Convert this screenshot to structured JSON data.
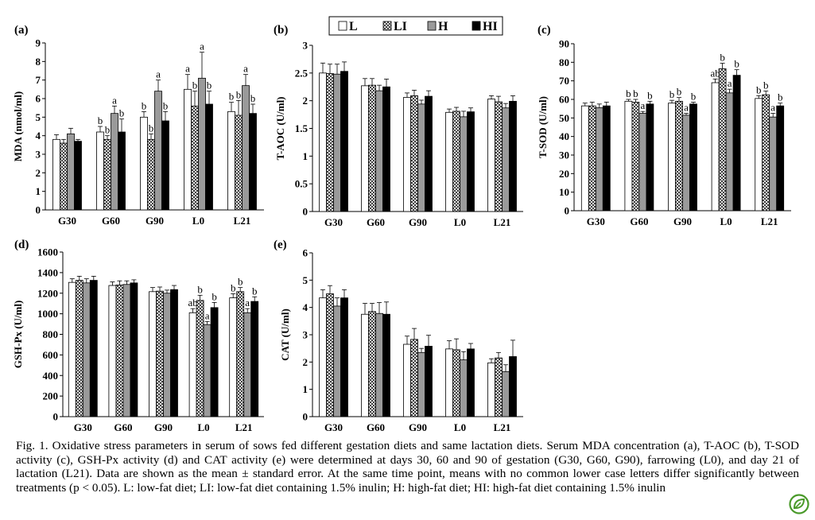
{
  "legend": [
    {
      "code": "L",
      "pattern": "white"
    },
    {
      "code": "LI",
      "pattern": "crosshatch"
    },
    {
      "code": "H",
      "pattern": "gray"
    },
    {
      "code": "HI",
      "pattern": "black"
    }
  ],
  "caption": "Fig. 1. Oxidative stress parameters in serum of sows fed different gestation diets and same lactation diets. Serum MDA concentration (a), T-AOC (b), T-SOD activity (c), GSH-Px activity (d) and CAT activity (e) were determined at days 30, 60 and 90 of gestation (G30, G60, G90), farrowing (L0), and day 21 of lactation (L21). Data are shown as the mean ± standard error. At the same time point, means with no common lower case letters differ significantly between treatments (p < 0.05). L: low-fat diet; LI: low-fat diet containing 1.5% inulin; H: high-fat diet; HI: high-fat diet containing 1.5% inulin",
  "colors": {
    "bar_white": "#ffffff",
    "bar_gray": "#9a9a9a",
    "bar_black": "#000000",
    "badge": "#4a9a2a"
  },
  "badge_icon": "green-leaf-logo",
  "chart_data": [
    {
      "panel": "(a)",
      "type": "bar",
      "ylabel": "MDA (nmol/ml)",
      "categories": [
        "G30",
        "G60",
        "G90",
        "L0",
        "L21"
      ],
      "ylim": [
        0,
        9
      ],
      "yticks": [
        0,
        1,
        2,
        3,
        4,
        5,
        6,
        7,
        8,
        9
      ],
      "series": [
        {
          "name": "L",
          "values": [
            3.8,
            4.2,
            5.0,
            6.5,
            5.3
          ],
          "errors": [
            0.25,
            0.3,
            0.3,
            0.8,
            0.5
          ],
          "letters": [
            "",
            "b",
            "b",
            "a",
            "b"
          ]
        },
        {
          "name": "LI",
          "values": [
            3.6,
            3.8,
            3.8,
            5.6,
            5.1
          ],
          "errors": [
            0.2,
            0.2,
            0.3,
            0.8,
            0.8
          ],
          "letters": [
            "",
            "b",
            "b",
            "b",
            "b"
          ]
        },
        {
          "name": "H",
          "values": [
            4.1,
            5.2,
            6.4,
            7.1,
            6.7
          ],
          "errors": [
            0.3,
            0.4,
            0.6,
            1.4,
            0.6
          ],
          "letters": [
            "",
            "a",
            "a",
            "a",
            "a"
          ]
        },
        {
          "name": "HI",
          "values": [
            3.7,
            4.2,
            4.8,
            5.7,
            5.2
          ],
          "errors": [
            0.1,
            0.7,
            0.5,
            0.7,
            0.5
          ],
          "letters": [
            "",
            "b",
            "b",
            "b",
            "b"
          ]
        }
      ]
    },
    {
      "panel": "(b)",
      "type": "bar",
      "ylabel": "T-AOC (U/ml)",
      "categories": [
        "G30",
        "G60",
        "G90",
        "L0",
        "L21"
      ],
      "ylim": [
        0,
        3
      ],
      "yticks": [
        0,
        0.5,
        1,
        1.5,
        2,
        2.5,
        3
      ],
      "series": [
        {
          "name": "L",
          "values": [
            2.5,
            2.27,
            2.06,
            1.79,
            2.03
          ],
          "errors": [
            0.18,
            0.13,
            0.08,
            0.06,
            0.06
          ],
          "letters": [
            "",
            "",
            "",
            "",
            ""
          ]
        },
        {
          "name": "LI",
          "values": [
            2.49,
            2.28,
            2.09,
            1.81,
            1.98
          ],
          "errors": [
            0.17,
            0.12,
            0.1,
            0.07,
            0.1
          ],
          "letters": [
            "",
            "",
            "",
            "",
            ""
          ]
        },
        {
          "name": "H",
          "values": [
            2.48,
            2.18,
            1.94,
            1.71,
            1.87
          ],
          "errors": [
            0.18,
            0.1,
            0.07,
            0.1,
            0.08
          ],
          "letters": [
            "",
            "",
            "",
            "",
            ""
          ]
        },
        {
          "name": "HI",
          "values": [
            2.53,
            2.25,
            2.08,
            1.8,
            1.99
          ],
          "errors": [
            0.17,
            0.14,
            0.1,
            0.07,
            0.1
          ],
          "letters": [
            "",
            "",
            "",
            "",
            ""
          ]
        }
      ]
    },
    {
      "panel": "(c)",
      "type": "bar",
      "ylabel": "T-SOD (U/ml)",
      "categories": [
        "G30",
        "G60",
        "G90",
        "L0",
        "L21"
      ],
      "ylim": [
        0,
        90
      ],
      "yticks": [
        0,
        10,
        20,
        30,
        40,
        50,
        60,
        70,
        80,
        90
      ],
      "series": [
        {
          "name": "L",
          "values": [
            56.5,
            59,
            58,
            69,
            60.5
          ],
          "errors": [
            1.5,
            1,
            1.5,
            2,
            1.5
          ],
          "letters": [
            "",
            "b",
            "b",
            "ab",
            "b"
          ]
        },
        {
          "name": "LI",
          "values": [
            56.5,
            58.5,
            59,
            76.5,
            62.5
          ],
          "errors": [
            2,
            1.5,
            2,
            3,
            2
          ],
          "letters": [
            "",
            "b",
            "b",
            "b",
            "b"
          ]
        },
        {
          "name": "H",
          "values": [
            55.5,
            52.5,
            51.5,
            63.5,
            50.5
          ],
          "errors": [
            2,
            1,
            1,
            2,
            2
          ],
          "letters": [
            "",
            "a",
            "a",
            "a",
            "a"
          ]
        },
        {
          "name": "HI",
          "values": [
            56.5,
            57.5,
            57.5,
            73,
            56.5
          ],
          "errors": [
            2,
            1.5,
            1,
            3,
            1.5
          ],
          "letters": [
            "",
            "b",
            "b",
            "b",
            "b"
          ]
        }
      ]
    },
    {
      "panel": "(d)",
      "type": "bar",
      "ylabel": "GSH-Px (U/ml)",
      "categories": [
        "G30",
        "G60",
        "G90",
        "L0",
        "L21"
      ],
      "ylim": [
        0,
        1600
      ],
      "yticks": [
        0,
        200,
        400,
        600,
        800,
        1000,
        1200,
        1400,
        1600
      ],
      "series": [
        {
          "name": "L",
          "values": [
            1305,
            1275,
            1215,
            1010,
            1155
          ],
          "errors": [
            35,
            35,
            40,
            40,
            40
          ],
          "letters": [
            "",
            "",
            "",
            "ab",
            "b"
          ]
        },
        {
          "name": "LI",
          "values": [
            1325,
            1280,
            1220,
            1130,
            1215
          ],
          "errors": [
            40,
            40,
            40,
            50,
            40
          ],
          "letters": [
            "",
            "",
            "",
            "b",
            "b"
          ]
        },
        {
          "name": "H",
          "values": [
            1300,
            1285,
            1200,
            895,
            1010
          ],
          "errors": [
            40,
            35,
            30,
            30,
            40
          ],
          "letters": [
            "",
            "",
            "",
            "a",
            "a"
          ]
        },
        {
          "name": "HI",
          "values": [
            1325,
            1300,
            1235,
            1060,
            1120
          ],
          "errors": [
            40,
            30,
            40,
            50,
            45
          ],
          "letters": [
            "",
            "",
            "",
            "b",
            "b"
          ]
        }
      ]
    },
    {
      "panel": "(e)",
      "type": "bar",
      "ylabel": "CAT (U/ml)",
      "categories": [
        "G30",
        "G60",
        "G90",
        "L0",
        "L21"
      ],
      "ylim": [
        0,
        6
      ],
      "yticks": [
        0,
        1,
        2,
        3,
        4,
        5,
        6
      ],
      "series": [
        {
          "name": "L",
          "values": [
            4.35,
            3.75,
            2.65,
            2.48,
            1.97
          ],
          "errors": [
            0.3,
            0.4,
            0.3,
            0.3,
            0.15
          ],
          "letters": [
            "",
            "",
            "",
            "",
            ""
          ]
        },
        {
          "name": "LI",
          "values": [
            4.5,
            3.85,
            2.83,
            2.45,
            2.15
          ],
          "errors": [
            0.3,
            0.3,
            0.4,
            0.4,
            0.2
          ],
          "letters": [
            "",
            "",
            "",
            "",
            ""
          ]
        },
        {
          "name": "H",
          "values": [
            4.05,
            3.78,
            2.35,
            2.08,
            1.65
          ],
          "errors": [
            0.3,
            0.4,
            0.15,
            0.3,
            0.25
          ],
          "letters": [
            "",
            "",
            "",
            "",
            ""
          ]
        },
        {
          "name": "HI",
          "values": [
            4.35,
            3.75,
            2.58,
            2.48,
            2.2
          ],
          "errors": [
            0.3,
            0.45,
            0.4,
            0.2,
            0.6
          ],
          "letters": [
            "",
            "",
            "",
            "",
            ""
          ]
        }
      ]
    }
  ]
}
